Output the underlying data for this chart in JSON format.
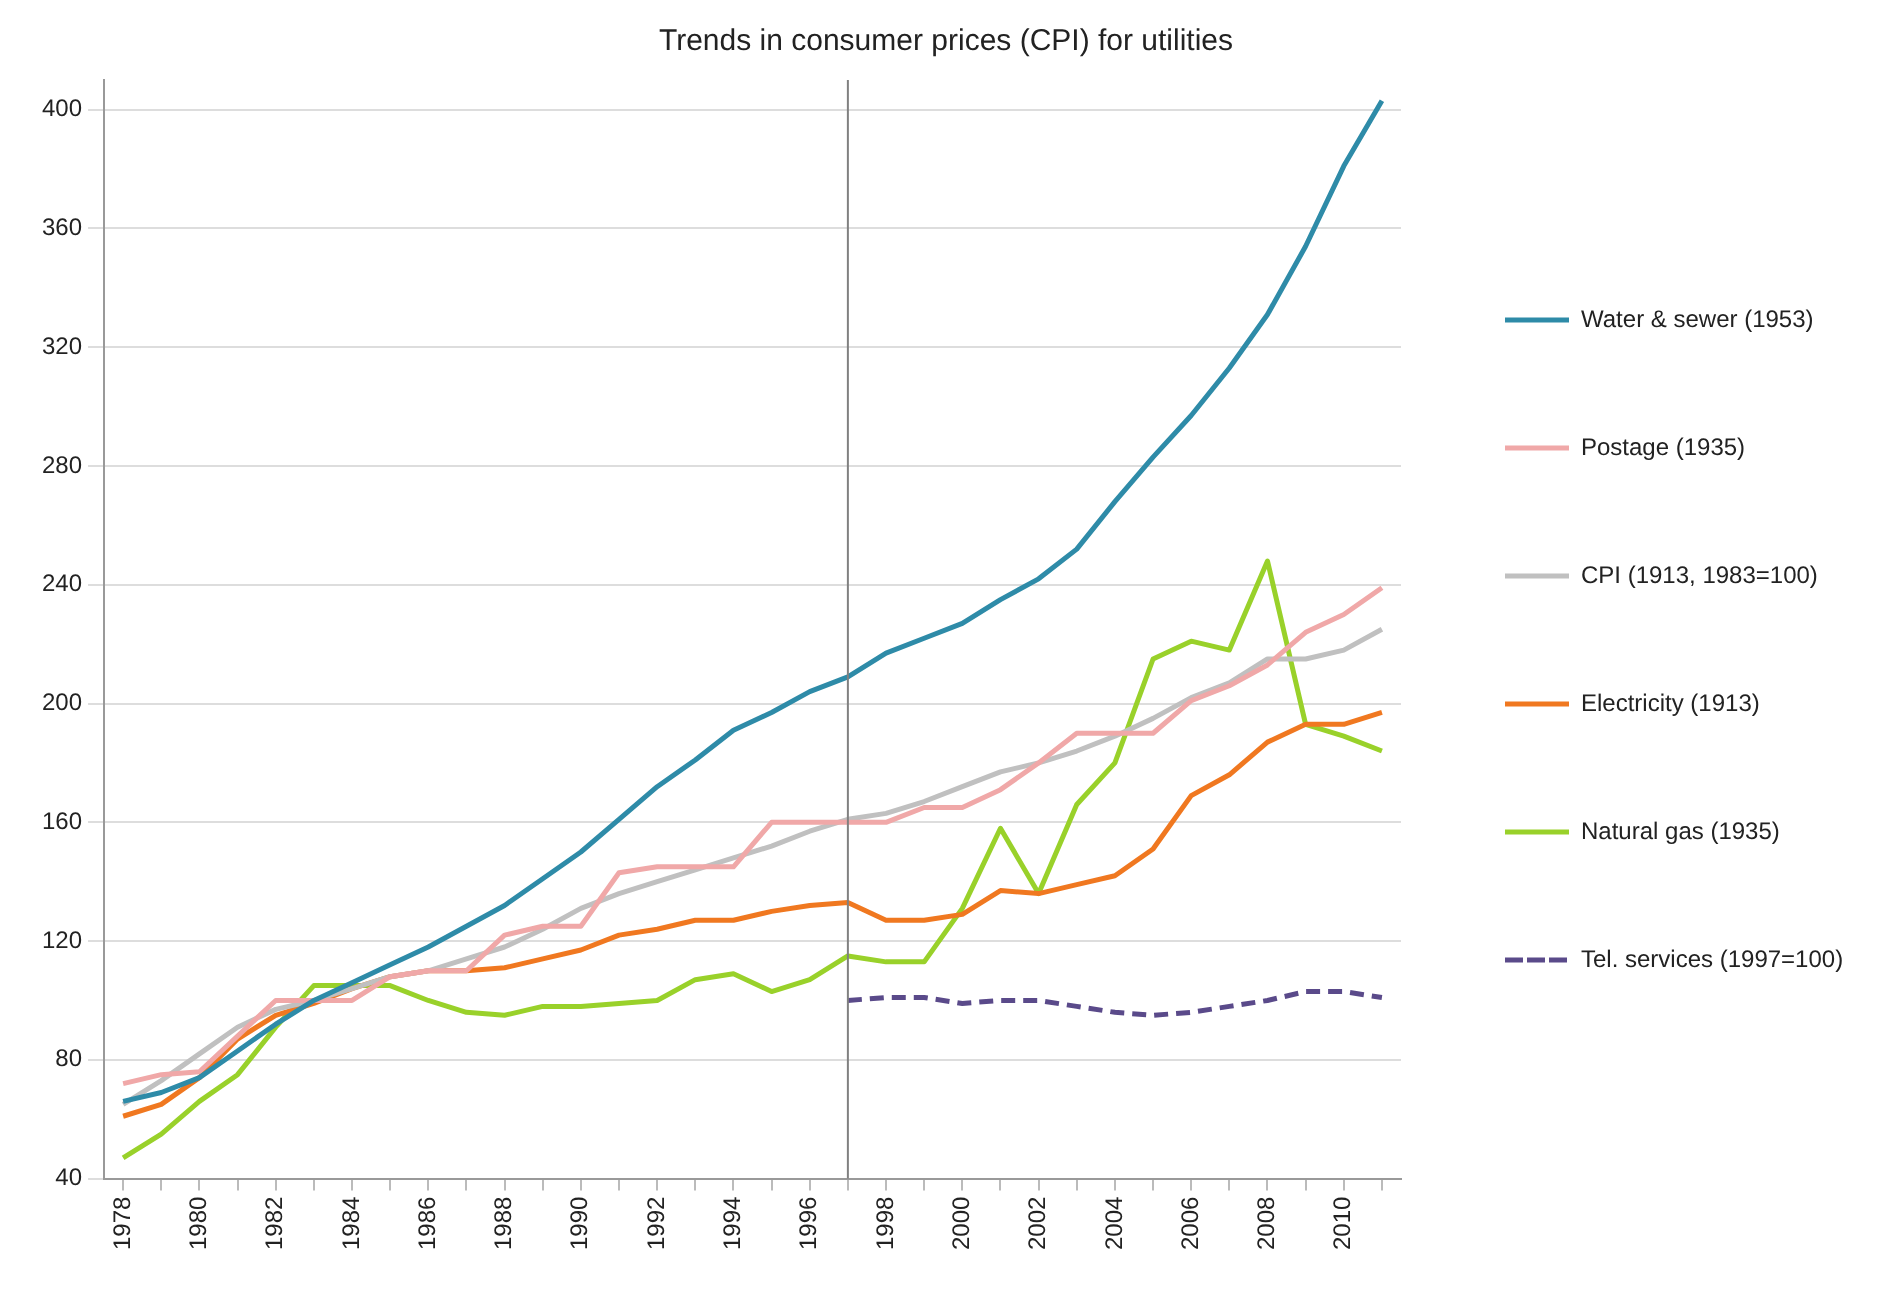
{
  "chart_data": {
    "type": "line",
    "title": "Trends in consumer prices (CPI) for utilities",
    "x": [
      1978,
      1979,
      1980,
      1981,
      1982,
      1983,
      1984,
      1985,
      1986,
      1987,
      1988,
      1989,
      1990,
      1991,
      1992,
      1993,
      1994,
      1995,
      1996,
      1997,
      1998,
      1999,
      2000,
      2001,
      2002,
      2003,
      2004,
      2005,
      2006,
      2007,
      2008,
      2009,
      2010,
      2011
    ],
    "xlim": [
      1977.5,
      2011.5
    ],
    "xticks": [
      1978,
      {
        "value": 1979,
        "label": null
      },
      1980,
      {
        "value": 1981,
        "label": null
      },
      1982,
      {
        "value": 1983,
        "label": null
      },
      1984,
      {
        "value": 1985,
        "label": null
      },
      1986,
      {
        "value": 1987,
        "label": null
      },
      1988,
      {
        "value": 1989,
        "label": null
      },
      1990,
      {
        "value": 1991,
        "label": null
      },
      1992,
      {
        "value": 1993,
        "label": null
      },
      1994,
      {
        "value": 1995,
        "label": null
      },
      1996,
      {
        "value": 1997,
        "label": null
      },
      1998,
      {
        "value": 1999,
        "label": null
      },
      2000,
      {
        "value": 2001,
        "label": null
      },
      2002,
      {
        "value": 2003,
        "label": null
      },
      2004,
      {
        "value": 2005,
        "label": null
      },
      2006,
      {
        "value": 2007,
        "label": null
      },
      2008,
      {
        "value": 2009,
        "label": null
      },
      2010,
      {
        "value": 2011,
        "label": null
      }
    ],
    "ylim": [
      40,
      410
    ],
    "yticks": [
      40,
      80,
      120,
      160,
      200,
      240,
      280,
      320,
      360,
      400
    ],
    "grid": "y",
    "legend": "right",
    "marker": "none",
    "ref_lines": [
      {
        "axis": "x",
        "value": 1997,
        "color": "#808080"
      }
    ],
    "series": [
      {
        "name": "Water & sewer (1953)",
        "color": "#2e8ba8",
        "line_style": "solid",
        "values": [
          66,
          69,
          74,
          83,
          92,
          100,
          106,
          112,
          118,
          125,
          132,
          141,
          150,
          161,
          172,
          181,
          191,
          197,
          204,
          209,
          217,
          222,
          227,
          235,
          242,
          252,
          268,
          283,
          297,
          313,
          331,
          354,
          381,
          403
        ]
      },
      {
        "name": "Postage (1935)",
        "color": "#f0a8a8",
        "line_style": "solid",
        "values": [
          72,
          75,
          76,
          88,
          100,
          100,
          100,
          108,
          110,
          110,
          122,
          125,
          125,
          143,
          145,
          145,
          145,
          160,
          160,
          160,
          160,
          165,
          165,
          171,
          180,
          190,
          190,
          190,
          201,
          206,
          213,
          224,
          230,
          239
        ]
      },
      {
        "name": "CPI (1913, 1983=100)",
        "color": "#c0c0c0",
        "line_style": "solid",
        "values": [
          65,
          73,
          82,
          91,
          97,
          100,
          104,
          108,
          110,
          114,
          118,
          124,
          131,
          136,
          140,
          144,
          148,
          152,
          157,
          161,
          163,
          167,
          172,
          177,
          180,
          184,
          189,
          195,
          202,
          207,
          215,
          215,
          218,
          225
        ]
      },
      {
        "name": "Electricity (1913)",
        "color": "#f07820",
        "line_style": "solid",
        "values": [
          61,
          65,
          74,
          87,
          95,
          99,
          104,
          108,
          110,
          110,
          111,
          114,
          117,
          122,
          124,
          127,
          127,
          130,
          132,
          133,
          127,
          127,
          129,
          137,
          136,
          139,
          142,
          151,
          169,
          176,
          187,
          193,
          193,
          197
        ]
      },
      {
        "name": "Natural gas (1935)",
        "color": "#99d12a",
        "line_style": "solid",
        "values": [
          47,
          55,
          66,
          75,
          91,
          105,
          105,
          105,
          100,
          96,
          95,
          98,
          98,
          99,
          100,
          107,
          109,
          103,
          107,
          115,
          113,
          113,
          131,
          158,
          136,
          166,
          180,
          215,
          221,
          218,
          248,
          193,
          189,
          184
        ]
      },
      {
        "name": "Tel. services (1997=100)",
        "color": "#5a4a8a",
        "line_style": "dashed",
        "values": [
          null,
          null,
          null,
          null,
          null,
          null,
          null,
          null,
          null,
          null,
          null,
          null,
          null,
          null,
          null,
          null,
          null,
          null,
          null,
          100,
          101,
          101,
          99,
          100,
          100,
          98,
          96,
          95,
          96,
          98,
          100,
          103,
          103,
          101
        ]
      }
    ]
  }
}
